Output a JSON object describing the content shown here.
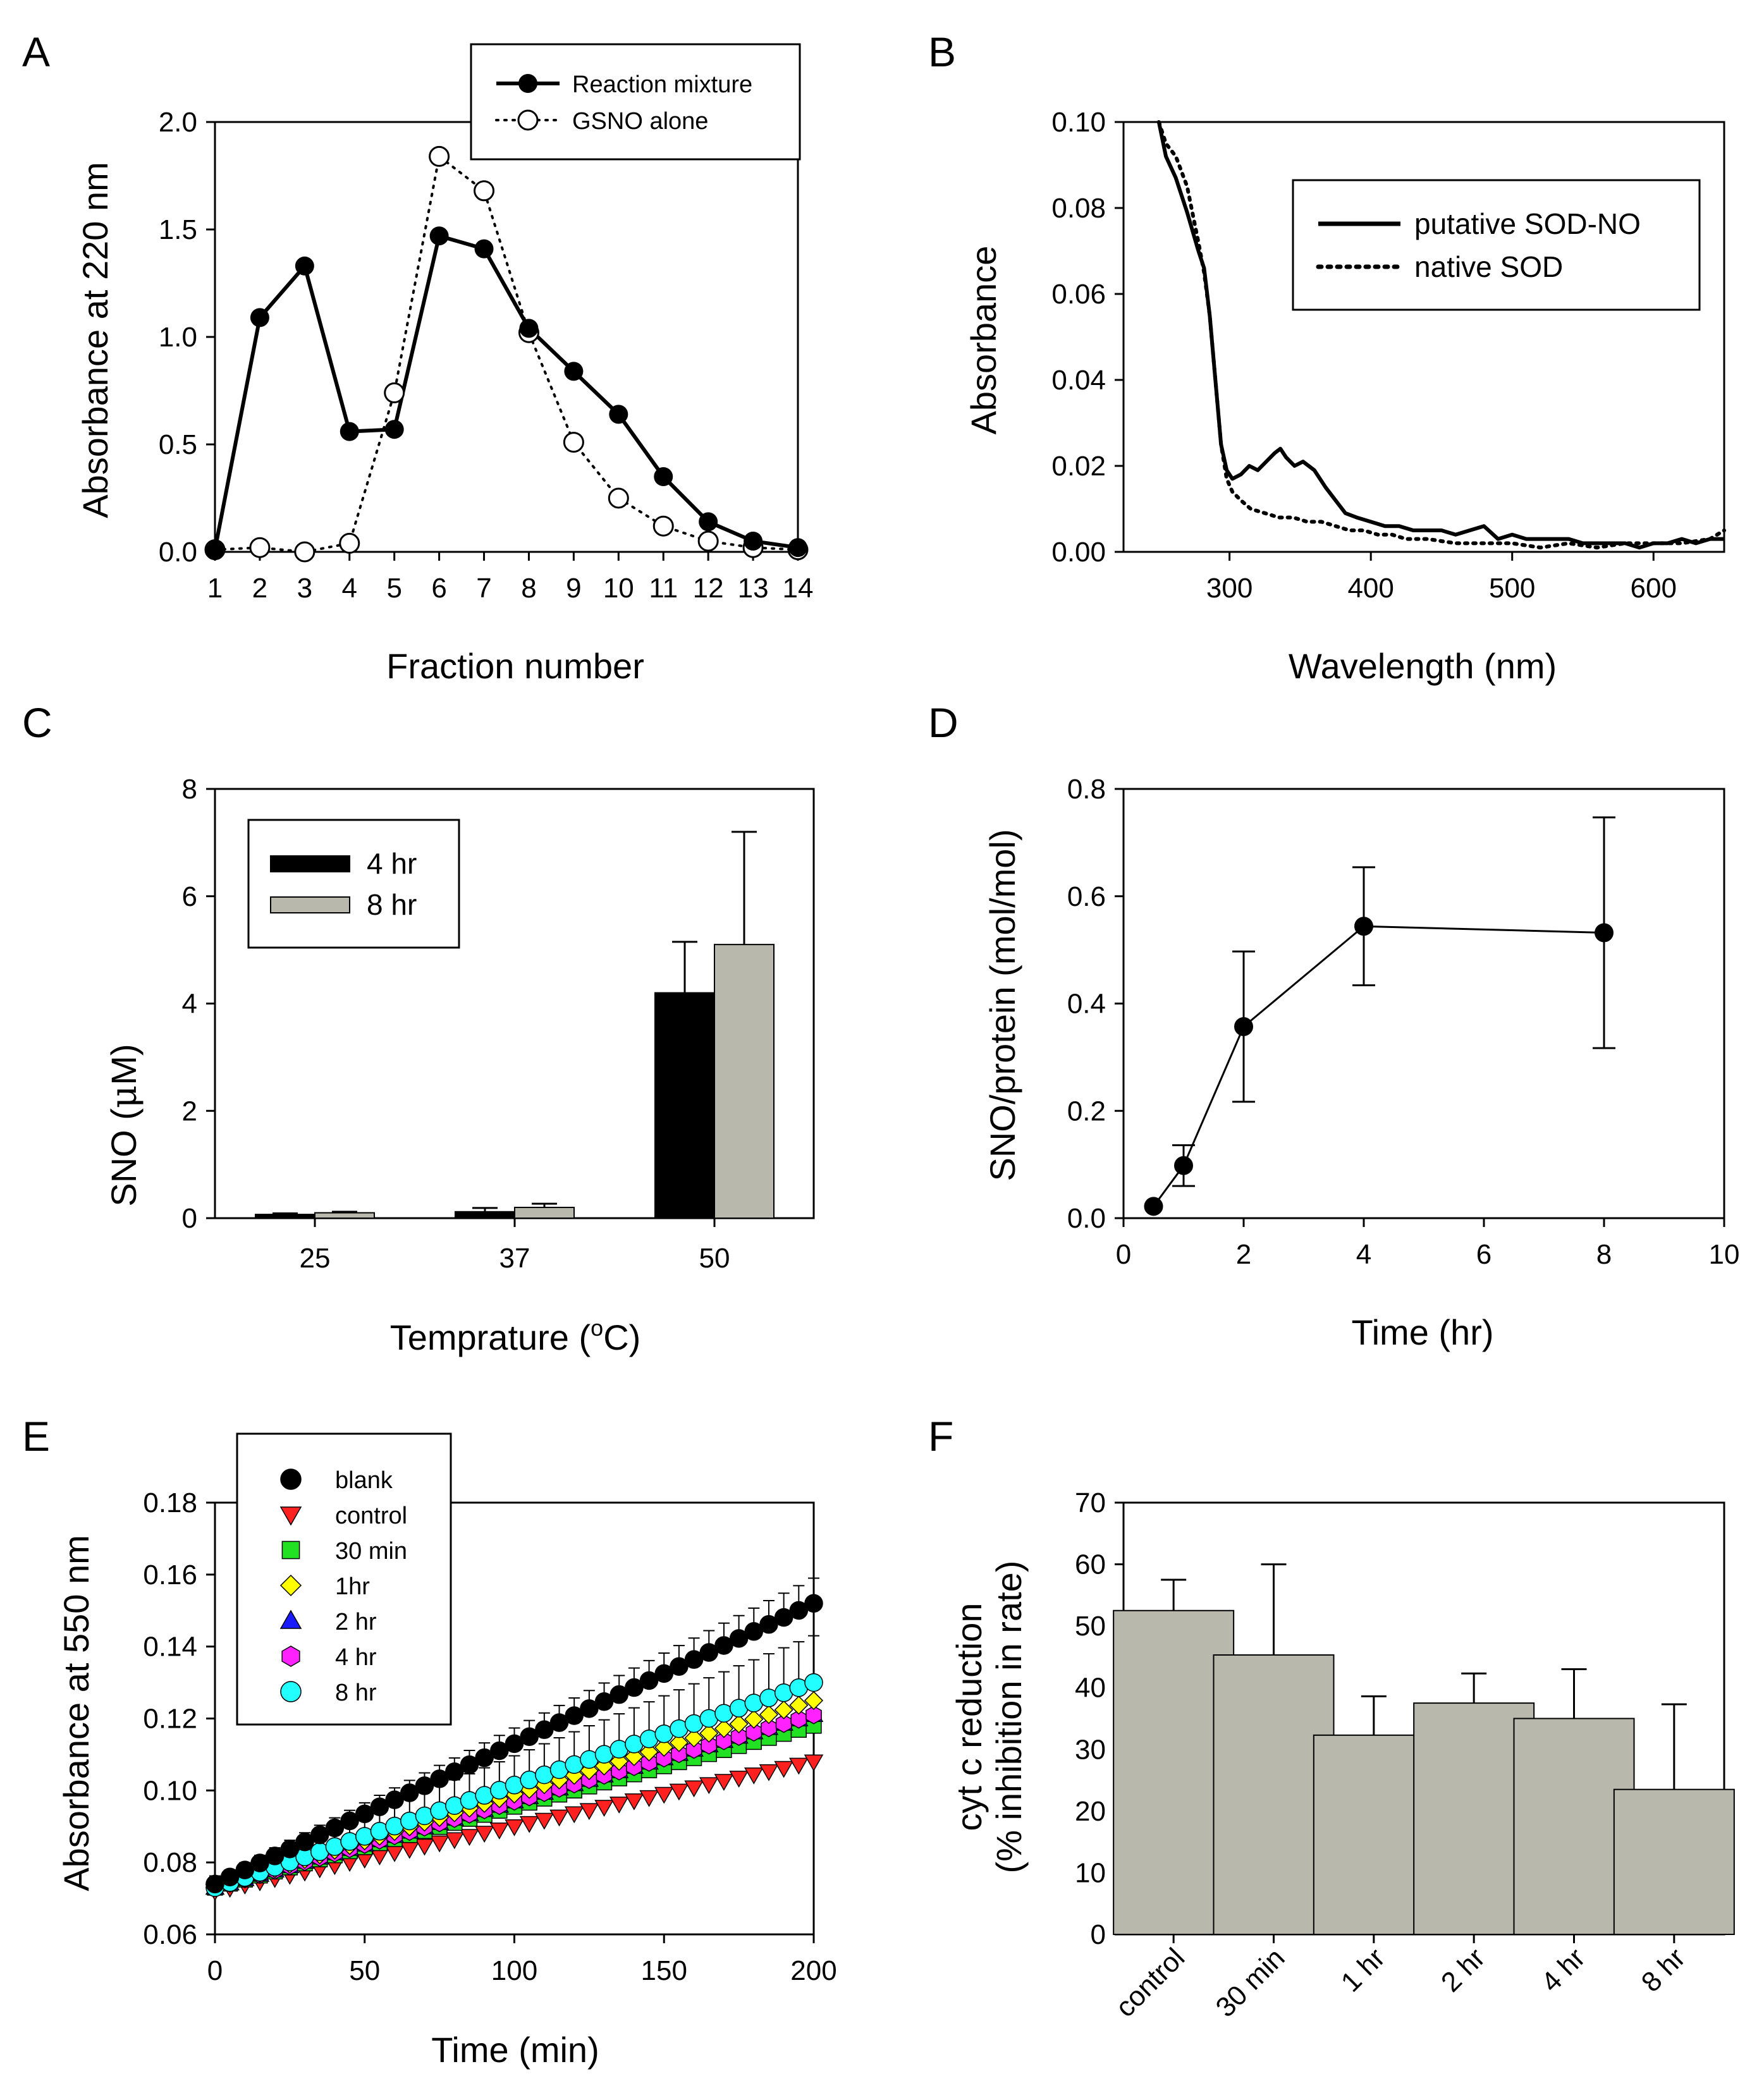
{
  "colors": {
    "axis": "#000000",
    "bar_black": "#000000",
    "bar_gray": "#b8b8ac",
    "red": "#ff2020",
    "green": "#22e022",
    "yellow": "#ffff00",
    "blue": "#1a1aff",
    "magenta": "#ff22ff",
    "cyan": "#22ffff"
  },
  "chart_data": [
    {
      "id": "A",
      "panel_label": "A",
      "type": "line",
      "xlabel": "Fraction number",
      "ylabel": "Absorbance at 220 nm",
      "xlim": [
        1,
        14
      ],
      "ylim": [
        0,
        2
      ],
      "xticks": [
        1,
        2,
        3,
        4,
        5,
        6,
        7,
        8,
        9,
        10,
        11,
        12,
        13,
        14
      ],
      "yticks": [
        0,
        0.5,
        1,
        1.5,
        2
      ],
      "ytick_labels": [
        "0.0",
        "0.5",
        "1.0",
        "1.5",
        "2.0"
      ],
      "legend": {
        "position": "top-right",
        "entries": [
          "Reaction mixture",
          "GSNO alone"
        ]
      },
      "series": [
        {
          "name": "Reaction mixture",
          "style": "solid-filled",
          "x": [
            1,
            2,
            3,
            4,
            5,
            6,
            7,
            8,
            9,
            10,
            11,
            12,
            13,
            14
          ],
          "y": [
            0.01,
            1.09,
            1.33,
            0.56,
            0.57,
            1.47,
            1.41,
            1.04,
            0.84,
            0.64,
            0.35,
            0.14,
            0.05,
            0.02
          ]
        },
        {
          "name": "GSNO alone",
          "style": "dotted-open",
          "x": [
            1,
            2,
            3,
            4,
            5,
            6,
            7,
            8,
            9,
            10,
            11,
            12,
            13,
            14
          ],
          "y": [
            0.01,
            0.02,
            0.0,
            0.04,
            0.74,
            1.84,
            1.68,
            1.02,
            0.51,
            0.25,
            0.12,
            0.05,
            0.02,
            0.01
          ]
        }
      ]
    },
    {
      "id": "B",
      "panel_label": "B",
      "type": "line",
      "xlabel": "Wavelength (nm)",
      "ylabel": "Absorbance",
      "xlim": [
        225,
        650
      ],
      "ylim": [
        0,
        0.1
      ],
      "xticks": [
        300,
        400,
        500,
        600
      ],
      "xtick_labels": [
        "300",
        "400",
        "500",
        "600"
      ],
      "yticks": [
        0,
        0.02,
        0.04,
        0.06,
        0.08,
        0.1
      ],
      "ytick_labels": [
        "0.00",
        "0.02",
        "0.04",
        "0.06",
        "0.08",
        "0.10"
      ],
      "legend": {
        "position": "top-right",
        "entries": [
          "putative SOD-NO",
          "native SOD"
        ]
      },
      "series": [
        {
          "name": "putative SOD-NO",
          "style": "solid",
          "x": [
            250,
            255,
            262,
            270,
            278,
            282,
            286,
            290,
            294,
            298,
            302,
            308,
            314,
            320,
            326,
            332,
            336,
            340,
            346,
            352,
            360,
            368,
            375,
            382,
            390,
            400,
            410,
            420,
            430,
            440,
            450,
            460,
            470,
            480,
            490,
            500,
            510,
            520,
            530,
            540,
            550,
            560,
            570,
            580,
            590,
            600,
            610,
            620,
            630,
            640,
            650
          ],
          "y": [
            0.1,
            0.092,
            0.087,
            0.079,
            0.07,
            0.066,
            0.055,
            0.04,
            0.025,
            0.019,
            0.017,
            0.018,
            0.02,
            0.019,
            0.021,
            0.023,
            0.024,
            0.022,
            0.02,
            0.021,
            0.019,
            0.015,
            0.012,
            0.009,
            0.008,
            0.007,
            0.006,
            0.006,
            0.005,
            0.005,
            0.005,
            0.004,
            0.005,
            0.006,
            0.003,
            0.004,
            0.003,
            0.003,
            0.003,
            0.003,
            0.002,
            0.002,
            0.002,
            0.002,
            0.001,
            0.002,
            0.002,
            0.003,
            0.002,
            0.003,
            0.003
          ]
        },
        {
          "name": "native SOD",
          "style": "dotted",
          "x": [
            250,
            255,
            262,
            270,
            278,
            282,
            286,
            290,
            294,
            298,
            302,
            308,
            315,
            325,
            335,
            345,
            355,
            365,
            375,
            385,
            395,
            405,
            415,
            425,
            440,
            460,
            480,
            500,
            520,
            540,
            560,
            580,
            600,
            620,
            640,
            650
          ],
          "y": [
            0.1,
            0.095,
            0.092,
            0.085,
            0.072,
            0.065,
            0.055,
            0.04,
            0.025,
            0.017,
            0.014,
            0.012,
            0.01,
            0.009,
            0.008,
            0.008,
            0.007,
            0.007,
            0.006,
            0.005,
            0.005,
            0.004,
            0.004,
            0.003,
            0.003,
            0.002,
            0.002,
            0.002,
            0.001,
            0.002,
            0.001,
            0.002,
            0.002,
            0.002,
            0.003,
            0.005
          ]
        }
      ]
    },
    {
      "id": "C",
      "panel_label": "C",
      "type": "bar",
      "xlabel_main": "Temprature (",
      "xlabel_sup": "o",
      "xlabel_unit": "C)",
      "ylabel_main": "SNO (",
      "ylabel_mu": "μ",
      "ylabel_unit": "M)",
      "categories": [
        "25",
        "37",
        "50"
      ],
      "ylim": [
        0,
        8
      ],
      "yticks": [
        0,
        2,
        4,
        6,
        8
      ],
      "ytick_labels": [
        "0",
        "2",
        "4",
        "6",
        "8"
      ],
      "legend": {
        "position": "top-left",
        "entries": [
          "4 hr",
          "8 hr"
        ]
      },
      "series": [
        {
          "name": "4 hr",
          "color": "black",
          "values": [
            0.07,
            0.12,
            4.2
          ],
          "errors": [
            0.02,
            0.07,
            0.95
          ]
        },
        {
          "name": "8 hr",
          "color": "gray",
          "values": [
            0.1,
            0.2,
            5.1
          ],
          "errors": [
            0.02,
            0.07,
            2.1
          ]
        }
      ]
    },
    {
      "id": "D",
      "panel_label": "D",
      "type": "line",
      "xlabel": "Time (hr)",
      "ylabel": "SNO/protein (mol/mol)",
      "xlim": [
        0,
        10
      ],
      "ylim": [
        0,
        0.8
      ],
      "xticks": [
        0,
        2,
        4,
        6,
        8,
        10
      ],
      "xtick_labels": [
        "0",
        "2",
        "4",
        "6",
        "8",
        "10"
      ],
      "yticks": [
        0,
        0.2,
        0.4,
        0.6,
        0.8
      ],
      "ytick_labels": [
        "0.0",
        "0.2",
        "0.4",
        "0.6",
        "0.8"
      ],
      "series": [
        {
          "name": "SNO/protein",
          "x": [
            0.5,
            1,
            2,
            4,
            8
          ],
          "y": [
            0.022,
            0.098,
            0.357,
            0.544,
            0.532
          ],
          "errors": [
            0.0,
            0.038,
            0.14,
            0.11,
            0.215
          ]
        }
      ]
    },
    {
      "id": "E",
      "panel_label": "E",
      "type": "scatter",
      "xlabel": "Time (min)",
      "ylabel": "Absorbance at 550 nm",
      "xlim": [
        0,
        200
      ],
      "ylim": [
        0.06,
        0.18
      ],
      "xticks": [
        0,
        50,
        100,
        150,
        200
      ],
      "xtick_labels": [
        "0",
        "50",
        "100",
        "150",
        "200"
      ],
      "yticks": [
        0.06,
        0.08,
        0.1,
        0.12,
        0.14,
        0.16,
        0.18
      ],
      "ytick_labels": [
        "0.06",
        "0.08",
        "0.10",
        "0.12",
        "0.14",
        "0.16",
        "0.18"
      ],
      "x_step": 5,
      "legend": {
        "position": "top-left",
        "entries": [
          "blank",
          "control",
          "30 min",
          "1hr",
          "2 hr",
          "4 hr",
          "8 hr"
        ]
      },
      "series": [
        {
          "name": "blank",
          "marker": "circle",
          "color": "black",
          "start": 0.074,
          "end": 0.152,
          "error_end": 0.007
        },
        {
          "name": "control",
          "marker": "triangle-down",
          "color": "red",
          "start": 0.072,
          "end": 0.108,
          "error_end": 0.0
        },
        {
          "name": "30 min",
          "marker": "square",
          "color": "green",
          "start": 0.073,
          "end": 0.118,
          "error_end": 0.0
        },
        {
          "name": "1hr",
          "marker": "diamond",
          "color": "yellow",
          "start": 0.073,
          "end": 0.125,
          "error_end": 0.0
        },
        {
          "name": "2 hr",
          "marker": "triangle-up",
          "color": "blue",
          "start": 0.073,
          "end": 0.121,
          "error_end": 0.0
        },
        {
          "name": "4 hr",
          "marker": "hexagon",
          "color": "magenta",
          "start": 0.073,
          "end": 0.121,
          "error_end": 0.0
        },
        {
          "name": "8 hr",
          "marker": "circle",
          "color": "cyan",
          "start": 0.073,
          "end": 0.13,
          "error_end": 0.013
        }
      ]
    },
    {
      "id": "F",
      "panel_label": "F",
      "type": "bar",
      "ylabel_line1": "cyt c reduction",
      "ylabel_line2": "(% inhibition in rate)",
      "categories": [
        "control",
        "30 min",
        "1 hr",
        "2 hr",
        "4 hr",
        "8 hr"
      ],
      "ylim": [
        0,
        70
      ],
      "yticks": [
        0,
        10,
        20,
        30,
        40,
        50,
        60,
        70
      ],
      "ytick_labels": [
        "0",
        "10",
        "20",
        "30",
        "40",
        "50",
        "60",
        "70"
      ],
      "series": [
        {
          "name": "inhibition",
          "color": "gray",
          "values": [
            52.5,
            45.3,
            32.3,
            37.5,
            35.0,
            23.5
          ],
          "errors": [
            5.0,
            14.7,
            6.3,
            4.8,
            8.0,
            13.8
          ]
        }
      ]
    }
  ]
}
